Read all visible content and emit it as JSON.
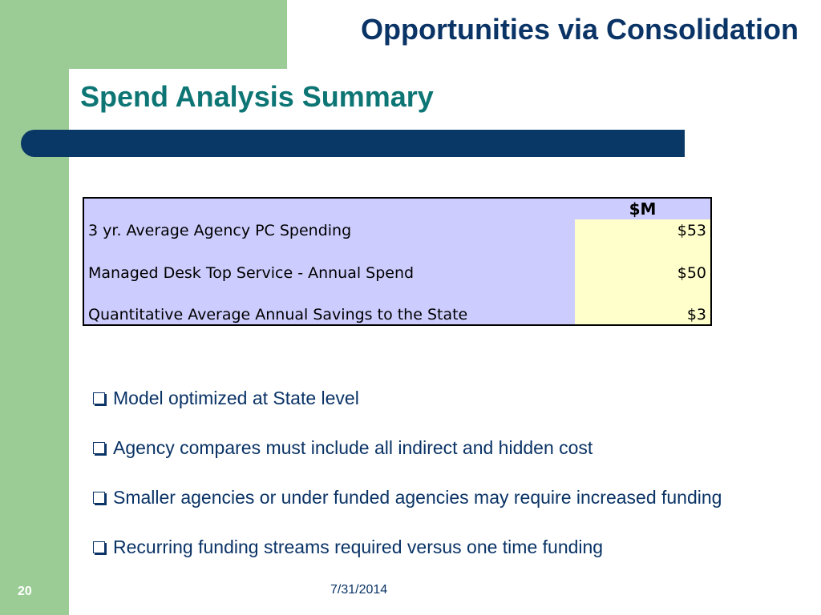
{
  "slide": {
    "title": "Opportunities via Consolidation",
    "subtitle": "Spend Analysis Summary",
    "page_number": "20",
    "date": "7/31/2014"
  },
  "table": {
    "column_header": "$M",
    "rows": [
      {
        "label": "3 yr. Average Agency PC Spending",
        "value": "$53"
      },
      {
        "label": "Managed Desk Top Service - Annual Spend",
        "value": "$50"
      },
      {
        "label": "Quantitative Average Annual Savings to the State",
        "value": "$3"
      }
    ]
  },
  "bullets": [
    "Model optimized at State level",
    "Agency compares must include all indirect and hidden cost",
    "Smaller agencies or under funded agencies may require increased funding",
    "Recurring funding streams required versus one time funding"
  ],
  "colors": {
    "green_band": "#9bcc96",
    "title_navy": "#0a3366",
    "subtitle_teal": "#0e7575",
    "table_lavender": "#ccccff",
    "table_value_yellow": "#ffffcc"
  },
  "icons": {
    "bullet": "checkbox-square-icon"
  }
}
